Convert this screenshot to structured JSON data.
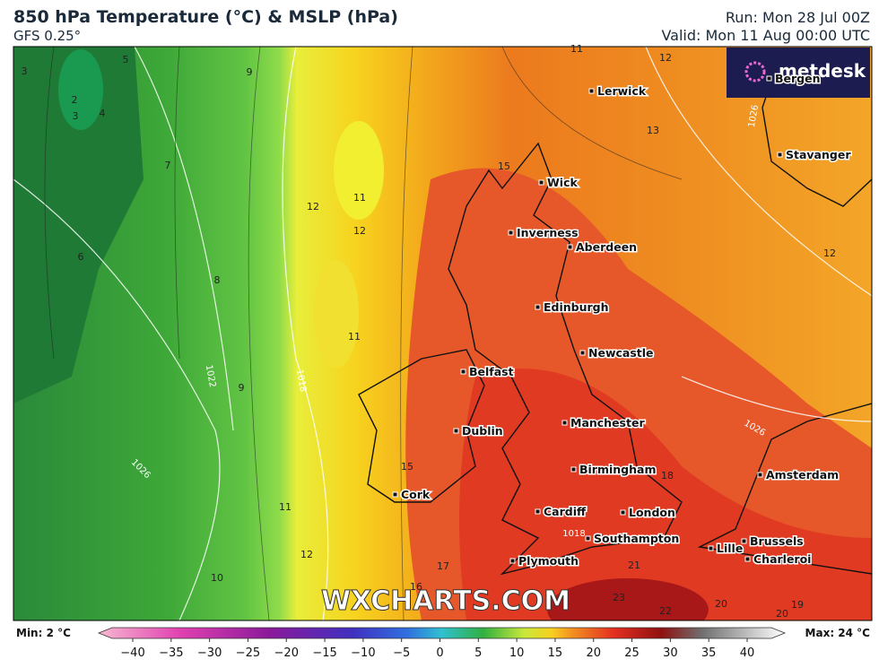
{
  "header": {
    "title": "850 hPa Temperature (°C) & MSLP (hPa)",
    "subtitle": "GFS 0.25°",
    "run": "Run: Mon 28 Jul 00Z",
    "valid": "Valid: Mon 11 Aug 00:00 UTC"
  },
  "logo": "metdesk",
  "watermark": "WXCHARTS.COM",
  "cities": [
    "Lerwick",
    "Bergen",
    "Stavanger",
    "Wick",
    "Inverness",
    "Aberdeen",
    "Edinburgh",
    "Newcastle",
    "Belfast",
    "Manchester",
    "Dublin",
    "Birmingham",
    "Amsterdam",
    "Cork",
    "Cardiff",
    "London",
    "Southampton",
    "Brussels",
    "Lille",
    "Plymouth",
    "Charleroi"
  ],
  "contour_labels": [
    "5",
    "3",
    "2",
    "3",
    "4",
    "9",
    "7",
    "6",
    "8",
    "9",
    "11",
    "12",
    "12",
    "11",
    "10",
    "11",
    "12",
    "15",
    "16",
    "17",
    "13",
    "12",
    "11",
    "12",
    "18",
    "21",
    "23",
    "22",
    "20",
    "19",
    "20",
    "15"
  ],
  "isobar_labels": [
    "1022",
    "1026",
    "1018",
    "1018",
    "1026",
    "1026"
  ],
  "colorbar": {
    "min": "Min: 2 °C",
    "max": "Max: 24 °C",
    "ticks": [
      "−40",
      "−35",
      "−30",
      "−25",
      "−20",
      "−15",
      "−10",
      "−5",
      "0",
      "5",
      "10",
      "15",
      "20",
      "25",
      "30",
      "35",
      "40"
    ]
  }
}
